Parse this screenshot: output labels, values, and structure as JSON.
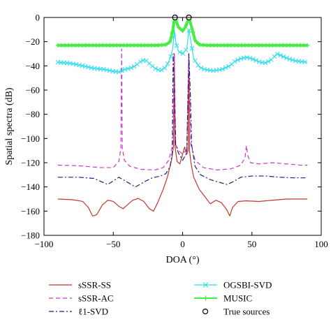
{
  "chart_data": {
    "type": "line",
    "title": "",
    "xlabel": "DOA (°)",
    "ylabel": "Spatial spectra (dB)",
    "xlim": [
      -100,
      100
    ],
    "ylim": [
      -180,
      0
    ],
    "xticks": [
      -100,
      -50,
      0,
      50,
      100
    ],
    "yticks": [
      0,
      -20,
      -40,
      -60,
      -80,
      -100,
      -120,
      -140,
      -160,
      -180
    ],
    "xtick_labels": [
      "−100",
      "−50",
      "0",
      "50",
      "100"
    ],
    "ytick_labels": [
      "0",
      "−20",
      "−40",
      "−60",
      "−80",
      "−100",
      "−120",
      "−140",
      "−160",
      "−180"
    ],
    "grid": false,
    "legend_position": "below",
    "series": [
      {
        "name": "sSSR-SS",
        "color": "#c0392b",
        "style": "solid",
        "points": [
          [
            -90,
            -150
          ],
          [
            -80,
            -150.5
          ],
          [
            -72,
            -152
          ],
          [
            -68,
            -157
          ],
          [
            -65,
            -164
          ],
          [
            -62,
            -163
          ],
          [
            -58,
            -155
          ],
          [
            -54,
            -151
          ],
          [
            -50,
            -152
          ],
          [
            -46,
            -156
          ],
          [
            -43,
            -158
          ],
          [
            -40,
            -155
          ],
          [
            -36,
            -151
          ],
          [
            -32,
            -149.5
          ],
          [
            -28,
            -152
          ],
          [
            -24,
            -158
          ],
          [
            -21,
            -160
          ],
          [
            -18,
            -153
          ],
          [
            -14,
            -142
          ],
          [
            -11,
            -132
          ],
          [
            -8,
            -118
          ],
          [
            -6.5,
            -106
          ],
          [
            -6,
            -30
          ],
          [
            -5.5,
            -106
          ],
          [
            -4,
            -119
          ],
          [
            -2,
            -121
          ],
          [
            0,
            -113
          ],
          [
            1.5,
            -107
          ],
          [
            3,
            -113
          ],
          [
            4,
            -110
          ],
          [
            4.5,
            -30
          ],
          [
            5,
            -110
          ],
          [
            6,
            -120
          ],
          [
            8,
            -132
          ],
          [
            12,
            -142
          ],
          [
            16,
            -148
          ],
          [
            20,
            -154
          ],
          [
            24,
            -151
          ],
          [
            28,
            -153
          ],
          [
            32,
            -159
          ],
          [
            34,
            -164
          ],
          [
            36,
            -157
          ],
          [
            40,
            -152
          ],
          [
            46,
            -151.5
          ],
          [
            55,
            -152
          ],
          [
            65,
            -151
          ],
          [
            75,
            -150
          ],
          [
            85,
            -150
          ],
          [
            90,
            -150
          ]
        ]
      },
      {
        "name": "sSSR-AC",
        "color": "#cc33cc",
        "style": "dashed",
        "points": [
          [
            -90,
            -122
          ],
          [
            -75,
            -122.5
          ],
          [
            -60,
            -124
          ],
          [
            -50,
            -124
          ],
          [
            -46,
            -119
          ],
          [
            -44.5,
            -108
          ],
          [
            -44,
            -26
          ],
          [
            -43.5,
            -108
          ],
          [
            -42,
            -118
          ],
          [
            -38,
            -123
          ],
          [
            -30,
            -125.5
          ],
          [
            -20,
            -126
          ],
          [
            -14,
            -124
          ],
          [
            -10,
            -118
          ],
          [
            -7,
            -105
          ],
          [
            -6,
            -30
          ],
          [
            -5,
            -105
          ],
          [
            -3,
            -110
          ],
          [
            0,
            -113
          ],
          [
            3,
            -109
          ],
          [
            4.5,
            -30
          ],
          [
            6,
            -105
          ],
          [
            9,
            -118
          ],
          [
            15,
            -124
          ],
          [
            25,
            -126
          ],
          [
            35,
            -125
          ],
          [
            42,
            -122
          ],
          [
            45,
            -116
          ],
          [
            46,
            -106
          ],
          [
            47,
            -114
          ],
          [
            49,
            -120
          ],
          [
            55,
            -121
          ],
          [
            65,
            -120
          ],
          [
            75,
            -121
          ],
          [
            85,
            -122
          ],
          [
            90,
            -122
          ]
        ]
      },
      {
        "name": "ℓ1-SVD",
        "color": "#1a237e",
        "style": "dashdot",
        "points": [
          [
            -90,
            -132
          ],
          [
            -75,
            -132
          ],
          [
            -64,
            -133
          ],
          [
            -58,
            -136
          ],
          [
            -54,
            -138
          ],
          [
            -50,
            -135
          ],
          [
            -46,
            -132
          ],
          [
            -40,
            -136
          ],
          [
            -34,
            -140
          ],
          [
            -28,
            -136
          ],
          [
            -22,
            -132.5
          ],
          [
            -16,
            -131
          ],
          [
            -12,
            -129
          ],
          [
            -9,
            -123
          ],
          [
            -7.5,
            -112
          ],
          [
            -6.8,
            -30
          ],
          [
            -6,
            -60
          ],
          [
            -5,
            -105
          ],
          [
            -3,
            -112
          ],
          [
            0,
            -118
          ],
          [
            3,
            -112
          ],
          [
            4.5,
            -30
          ],
          [
            5.5,
            -60
          ],
          [
            6.5,
            -105
          ],
          [
            9,
            -123
          ],
          [
            13,
            -130
          ],
          [
            20,
            -134
          ],
          [
            26,
            -136
          ],
          [
            32,
            -138
          ],
          [
            36,
            -136
          ],
          [
            42,
            -132
          ],
          [
            50,
            -131
          ],
          [
            60,
            -131
          ],
          [
            70,
            -132
          ],
          [
            80,
            -132.5
          ],
          [
            90,
            -132.5
          ]
        ]
      },
      {
        "name": "OGSBI-SVD",
        "color": "#33ddee",
        "style": "solid-x",
        "points": [
          [
            -90,
            -37
          ],
          [
            -80,
            -38
          ],
          [
            -72,
            -40
          ],
          [
            -64,
            -42
          ],
          [
            -56,
            -43
          ],
          [
            -50,
            -44.5
          ],
          [
            -46,
            -45
          ],
          [
            -42,
            -43
          ],
          [
            -38,
            -42
          ],
          [
            -34,
            -40
          ],
          [
            -30,
            -36
          ],
          [
            -27,
            -35
          ],
          [
            -24,
            -38
          ],
          [
            -20,
            -42
          ],
          [
            -16,
            -44
          ],
          [
            -12,
            -41
          ],
          [
            -9,
            -34
          ],
          [
            -7,
            -25
          ],
          [
            -6,
            -10
          ],
          [
            -5,
            -20
          ],
          [
            -3,
            -28
          ],
          [
            0,
            -30
          ],
          [
            3,
            -26
          ],
          [
            4.5,
            -10
          ],
          [
            6,
            -20
          ],
          [
            8,
            -34
          ],
          [
            12,
            -41
          ],
          [
            16,
            -43
          ],
          [
            22,
            -44
          ],
          [
            28,
            -43
          ],
          [
            34,
            -40
          ],
          [
            38,
            -36
          ],
          [
            42,
            -34
          ],
          [
            46,
            -33
          ],
          [
            50,
            -34
          ],
          [
            56,
            -37
          ],
          [
            60,
            -37.5
          ],
          [
            64,
            -35
          ],
          [
            68,
            -30
          ],
          [
            72,
            -32
          ],
          [
            76,
            -34
          ],
          [
            82,
            -36
          ],
          [
            90,
            -37
          ]
        ]
      },
      {
        "name": "MUSIC",
        "color": "#44ee44",
        "style": "solid-plus",
        "points": [
          [
            -90,
            -23
          ],
          [
            -70,
            -23
          ],
          [
            -50,
            -23
          ],
          [
            -30,
            -23
          ],
          [
            -18,
            -23
          ],
          [
            -12,
            -22.5
          ],
          [
            -9,
            -20
          ],
          [
            -7,
            -10
          ],
          [
            -6,
            -2
          ],
          [
            -5,
            -2
          ],
          [
            -3,
            -8
          ],
          [
            0,
            -11
          ],
          [
            2,
            -8
          ],
          [
            4,
            -2
          ],
          [
            5,
            -2
          ],
          [
            7,
            -10
          ],
          [
            9,
            -19
          ],
          [
            12,
            -22.5
          ],
          [
            18,
            -23
          ],
          [
            30,
            -23
          ],
          [
            50,
            -23
          ],
          [
            70,
            -23
          ],
          [
            90,
            -23
          ]
        ]
      },
      {
        "name": "True sources",
        "color": "#000000",
        "style": "marker-circle",
        "points": [
          [
            -5.5,
            0
          ],
          [
            4.5,
            0
          ]
        ]
      }
    ]
  }
}
